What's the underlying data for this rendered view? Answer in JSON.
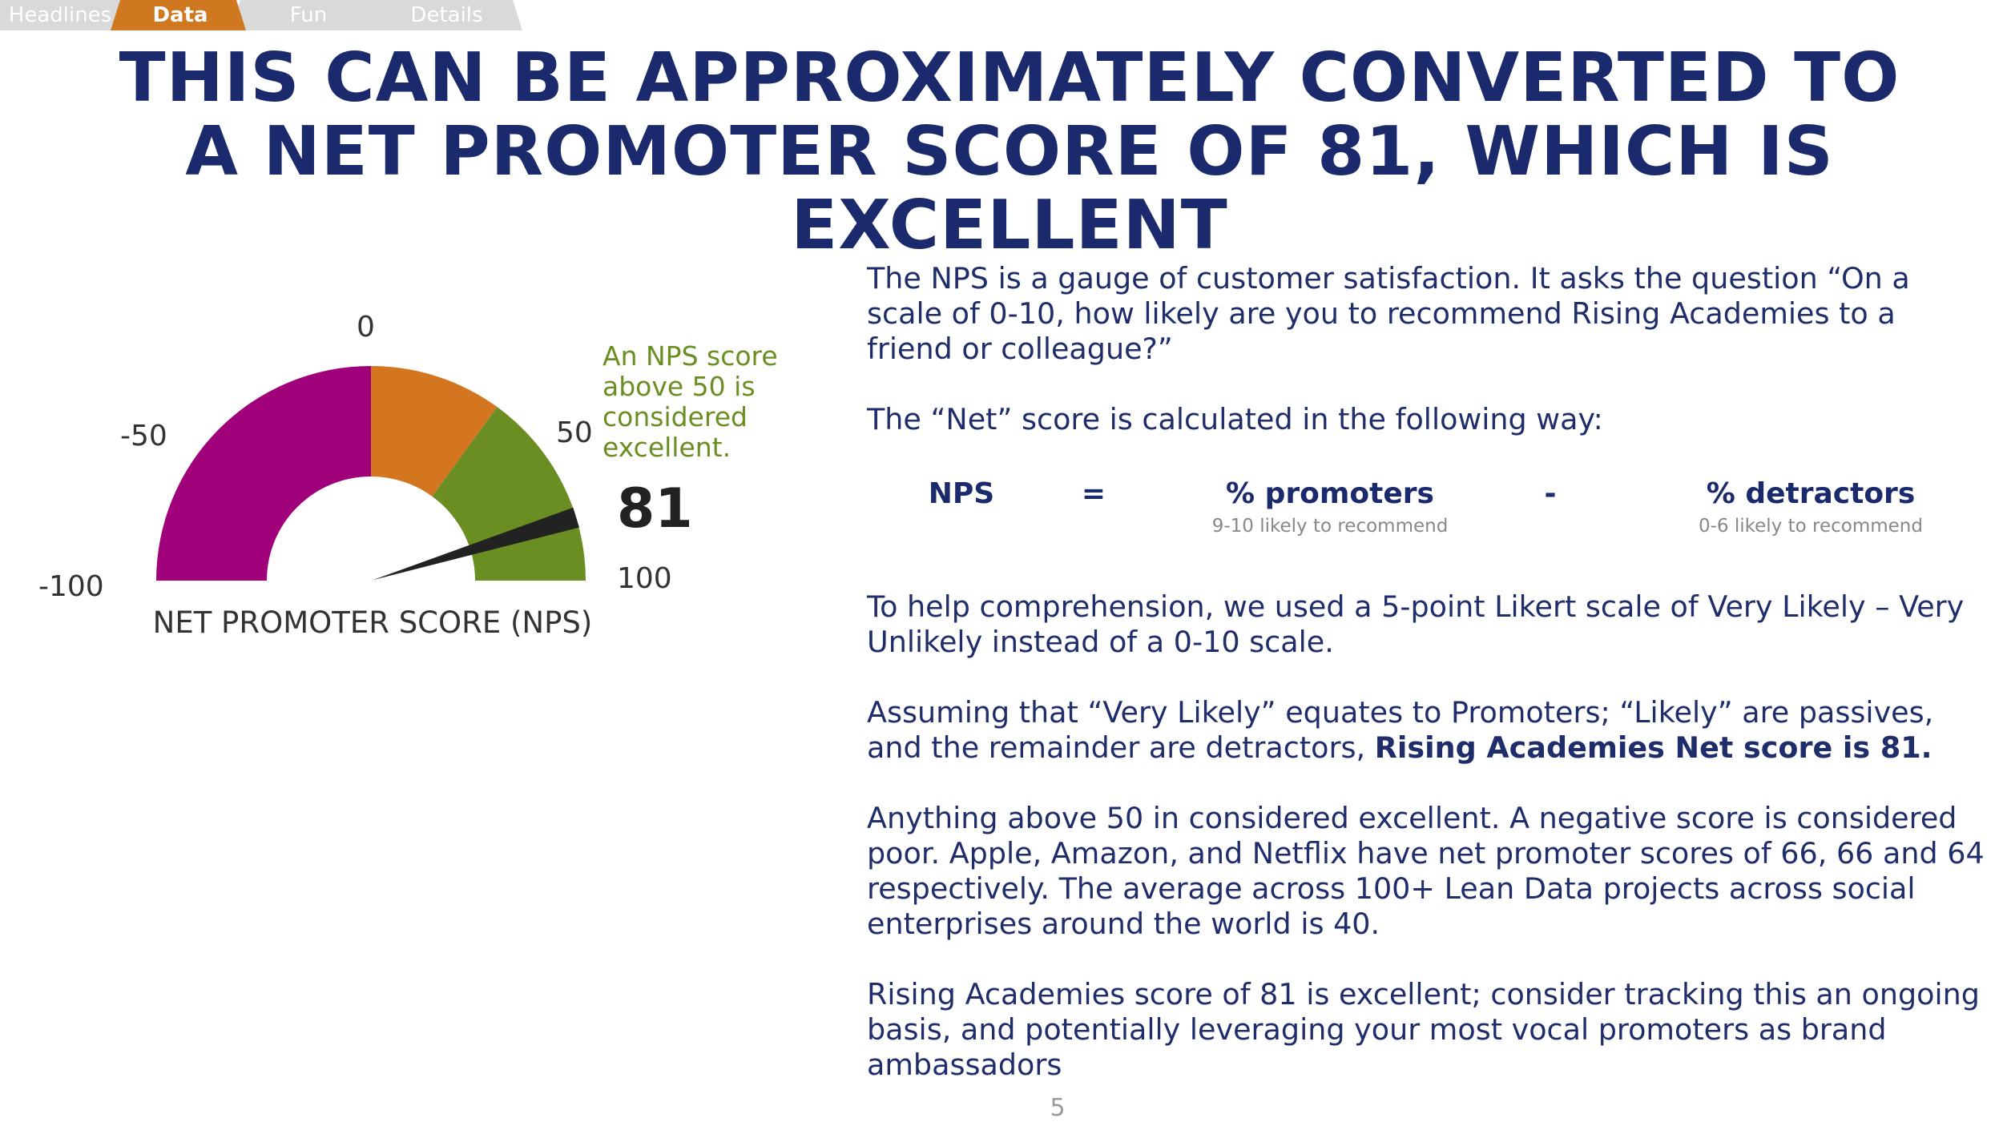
{
  "tabs": [
    {
      "label": "Headlines",
      "active": false
    },
    {
      "label": "Data",
      "active": true
    },
    {
      "label": "Fun",
      "active": false
    },
    {
      "label": "Details",
      "active": false
    }
  ],
  "colors": {
    "tab_inactive": "#d9d9d9",
    "tab_active": "#d07820",
    "title": "#1a2a6c",
    "body_text": "#1f2d6b",
    "gauge_purple": "#a0007a",
    "gauge_orange": "#d47520",
    "gauge_green": "#6b8e23",
    "needle": "#222222"
  },
  "title": "THIS CAN BE APPROXIMATELY CONVERTED TO A NET PROMOTER SCORE OF 81, WHICH IS EXCELLENT",
  "gauge": {
    "labels": {
      "min": "-100",
      "m50": "-50",
      "zero": "0",
      "p50": "50",
      "max": "100"
    },
    "value": 81,
    "value_label": "81",
    "caption": "NET PROMOTER SCORE (NPS)",
    "note": "An NPS score above 50 is considered excellent.",
    "segments": [
      {
        "from": -100,
        "to": 0,
        "color": "#a0007a"
      },
      {
        "from": 0,
        "to": 40,
        "color": "#d47520"
      },
      {
        "from": 40,
        "to": 100,
        "color": "#6b8e23"
      }
    ]
  },
  "content": {
    "p1": "The NPS is a gauge of customer satisfaction. It asks the question “On a scale of 0-10, how likely are you to recommend Rising Academies to a friend or colleague?”",
    "p2": "The “Net” score is calculated in the following way:",
    "formula": {
      "lhs": "NPS",
      "equals": "=",
      "promoters": "% promoters",
      "promoters_sub": "9-10 likely to recommend",
      "minus": "-",
      "detractors": "% detractors",
      "detractors_sub": "0-6 likely to recommend"
    },
    "p3": "To help comprehension, we used a 5-point Likert scale of Very Likely – Very Unlikely instead of a 0-10 scale.",
    "p4_pre": "Assuming that “Very Likely” equates to Promoters; “Likely” are passives, and the remainder are detractors, ",
    "p4_bold": "Rising Academies Net score is 81.",
    "p5": "Anything above 50 in considered excellent. A negative score is considered poor. Apple, Amazon, and Netflix have net promoter scores of 66, 66 and 64 respectively. The average across 100+ Lean Data projects across social enterprises around the world is 40.",
    "p6": "Rising Academies score of 81 is excellent; consider tracking this an ongoing basis, and potentially leveraging your most vocal promoters as brand ambassadors"
  },
  "page_number": "5"
}
